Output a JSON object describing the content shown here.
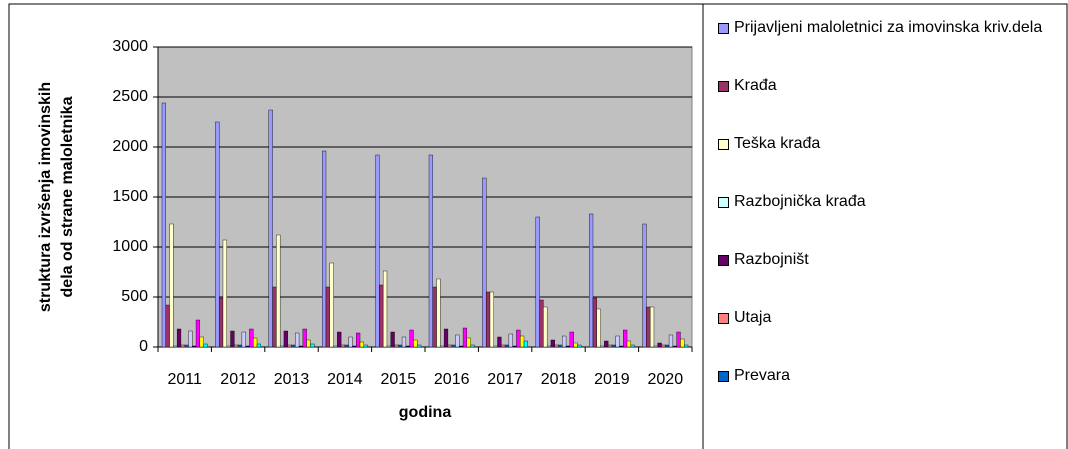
{
  "chart_data": {
    "type": "bar",
    "ylabel": [
      "struktura izvršenja imovinskih",
      "dela od strane maloletnika"
    ],
    "xlabel": "godina",
    "categories": [
      "2011",
      "2012",
      "2013",
      "2014",
      "2015",
      "2016",
      "2017",
      "2018",
      "2019",
      "2020"
    ],
    "ylim": [
      0,
      3000
    ],
    "yticks": [
      0,
      500,
      1000,
      1500,
      2000,
      2500,
      3000
    ],
    "grid": true,
    "series": [
      {
        "name": "Prijavljeni maloletnici za imovinska kriv.dela",
        "color": "#9999ff",
        "values": [
          2440,
          2250,
          2370,
          1960,
          1920,
          1920,
          1690,
          1300,
          1330,
          1230
        ]
      },
      {
        "name": "Krađa",
        "color": "#993366",
        "values": [
          420,
          490,
          600,
          600,
          620,
          600,
          550,
          470,
          490,
          400
        ]
      },
      {
        "name": "Teška krađa",
        "color": "#ffffcc",
        "values": [
          1230,
          1070,
          1120,
          840,
          760,
          680,
          550,
          400,
          380,
          400
        ]
      },
      {
        "name": "Razbojnička krađa",
        "color": "#ccffff",
        "values": [
          10,
          10,
          10,
          10,
          10,
          10,
          10,
          10,
          10,
          10
        ]
      },
      {
        "name": "Razbojništ",
        "color": "#660066",
        "values": [
          180,
          160,
          160,
          150,
          150,
          180,
          100,
          70,
          60,
          40
        ]
      },
      {
        "name": "Utaja",
        "color": "#ff8080",
        "values": [
          20,
          20,
          20,
          20,
          20,
          20,
          20,
          20,
          20,
          20
        ]
      },
      {
        "name": "Prevara",
        "color": "#0066cc",
        "values": [
          20,
          20,
          20,
          20,
          20,
          20,
          20,
          20,
          20,
          20
        ]
      },
      {
        "color": "#ccccff",
        "values": [
          160,
          150,
          140,
          100,
          100,
          120,
          130,
          110,
          110,
          120
        ]
      },
      {
        "color": "#000080",
        "values": [
          10,
          10,
          10,
          10,
          10,
          10,
          10,
          10,
          10,
          10
        ]
      },
      {
        "color": "#ff00ff",
        "values": [
          270,
          180,
          180,
          140,
          170,
          190,
          170,
          150,
          170,
          150
        ]
      },
      {
        "color": "#ffff00",
        "values": [
          100,
          90,
          70,
          50,
          70,
          90,
          110,
          40,
          60,
          80
        ]
      },
      {
        "color": "#00ffff",
        "values": [
          30,
          30,
          30,
          20,
          20,
          20,
          60,
          20,
          20,
          20
        ]
      }
    ]
  }
}
